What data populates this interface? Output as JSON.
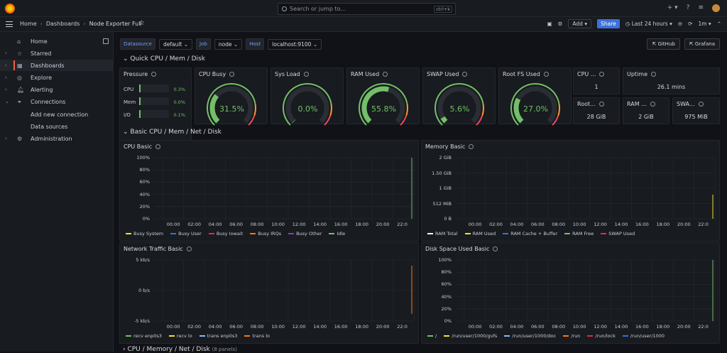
{
  "topbar": {
    "search_placeholder": "Search or jump to...",
    "search_shortcut": "ctrl+k"
  },
  "navbar": {
    "breadcrumbs": [
      "Home",
      "Dashboards",
      "Node Exporter Full"
    ],
    "add_label": "Add",
    "share_label": "Share",
    "time_range": "Last 24 hours",
    "refresh": "1m"
  },
  "sidebar": {
    "items": [
      {
        "label": "Home",
        "icon": "home-icon",
        "active": false
      },
      {
        "label": "Starred",
        "icon": "star-icon",
        "active": false
      },
      {
        "label": "Dashboards",
        "icon": "dashboards-icon",
        "active": true
      },
      {
        "label": "Explore",
        "icon": "compass-icon",
        "active": false
      },
      {
        "label": "Alerting",
        "icon": "bell-icon",
        "active": false
      },
      {
        "label": "Connections",
        "icon": "link-icon",
        "active": false
      }
    ],
    "sub_items": [
      "Add new connection",
      "Data sources"
    ],
    "admin": "Administration"
  },
  "variables": {
    "datasource_label": "Datasource",
    "datasource_value": "default",
    "job_label": "Job",
    "job_value": "node",
    "host_label": "Host",
    "host_value": "localhost:9100"
  },
  "links": [
    "GitHub",
    "Grafana"
  ],
  "rows": {
    "quick": "Quick CPU / Mem / Disk",
    "basic": "Basic CPU / Mem / Net / Disk",
    "more": "CPU / Memory / Net / Disk",
    "more_panels": "(8 panels)"
  },
  "pressure": {
    "title": "Pressure",
    "rows": [
      {
        "label": "CPU",
        "value": "0.3%",
        "fraction": 0.003
      },
      {
        "label": "Mem",
        "value": "0.0%",
        "fraction": 0
      },
      {
        "label": "I/O",
        "value": "0.1%",
        "fraction": 0.001
      }
    ]
  },
  "gauges": [
    {
      "title": "CPU Busy",
      "value": "31.5%",
      "fraction": 0.315,
      "color": "#73bf69"
    },
    {
      "title": "Sys Load",
      "value": "0.0%",
      "fraction": 0.0,
      "color": "#73bf69"
    },
    {
      "title": "RAM Used",
      "value": "55.8%",
      "fraction": 0.558,
      "color": "#73bf69"
    },
    {
      "title": "SWAP Used",
      "value": "5.6%",
      "fraction": 0.056,
      "color": "#73bf69"
    },
    {
      "title": "Root FS Used",
      "value": "27.0%",
      "fraction": 0.27,
      "color": "#73bf69"
    }
  ],
  "stats": [
    {
      "title": "CPU ...",
      "value": "1"
    },
    {
      "title": "Uptime",
      "value": "26.1 mins"
    },
    {
      "title": "Root...",
      "value": "28 GiB"
    },
    {
      "title": "RAM ...",
      "value": "2 GiB"
    },
    {
      "title": "SWA...",
      "value": "975 MiB"
    }
  ],
  "x_ticks": [
    "00:00",
    "02:00",
    "04:00",
    "06:00",
    "08:00",
    "10:00",
    "12:00",
    "14:00",
    "16:00",
    "18:00",
    "20:00",
    "22:0"
  ],
  "charts": {
    "cpu": {
      "title": "CPU Basic",
      "y_ticks": [
        "100%",
        "80%",
        "60%",
        "40%",
        "20%",
        "0%"
      ],
      "legend": [
        {
          "name": "Busy System",
          "color": "#fade2a"
        },
        {
          "name": "Busy User",
          "color": "#3274d9"
        },
        {
          "name": "Busy Iowait",
          "color": "#e02f44"
        },
        {
          "name": "Busy IRQs",
          "color": "#ff780a"
        },
        {
          "name": "Busy Other",
          "color": "#8f3bb8"
        },
        {
          "name": "Idle",
          "color": "#73bf69"
        }
      ]
    },
    "memory": {
      "title": "Memory Basic",
      "y_ticks": [
        "2 GiB",
        "1.50 GiB",
        "1 GiB",
        "512 MiB",
        "0 B"
      ],
      "legend": [
        {
          "name": "RAM Total",
          "color": "#ffffff"
        },
        {
          "name": "RAM Used",
          "color": "#fade2a"
        },
        {
          "name": "RAM Cache + Buffer",
          "color": "#3274d9"
        },
        {
          "name": "RAM Free",
          "color": "#73bf69"
        },
        {
          "name": "SWAP Used",
          "color": "#e02f44"
        }
      ]
    },
    "network": {
      "title": "Network Traffic Basic",
      "y_ticks": [
        "5 kb/s",
        "0 b/s",
        "-5 kb/s"
      ],
      "legend": [
        {
          "name": "recv enp0s3",
          "color": "#73bf69"
        },
        {
          "name": "recv lo",
          "color": "#fade2a"
        },
        {
          "name": "trans enp0s3",
          "color": "#8ab8ff"
        },
        {
          "name": "trans lo",
          "color": "#ff780a"
        }
      ]
    },
    "disk": {
      "title": "Disk Space Used Basic",
      "y_ticks": [
        "100%",
        "80%",
        "60%",
        "40%",
        "20%",
        "0%"
      ],
      "legend": [
        {
          "name": "/",
          "color": "#73bf69"
        },
        {
          "name": "/run/user/1000/gvfs",
          "color": "#fade2a"
        },
        {
          "name": "/run/user/1000/doc",
          "color": "#8ab8ff"
        },
        {
          "name": "/run",
          "color": "#ff780a"
        },
        {
          "name": "/run/lock",
          "color": "#e02f44"
        },
        {
          "name": "/run/user/1000",
          "color": "#3274d9"
        }
      ]
    }
  }
}
